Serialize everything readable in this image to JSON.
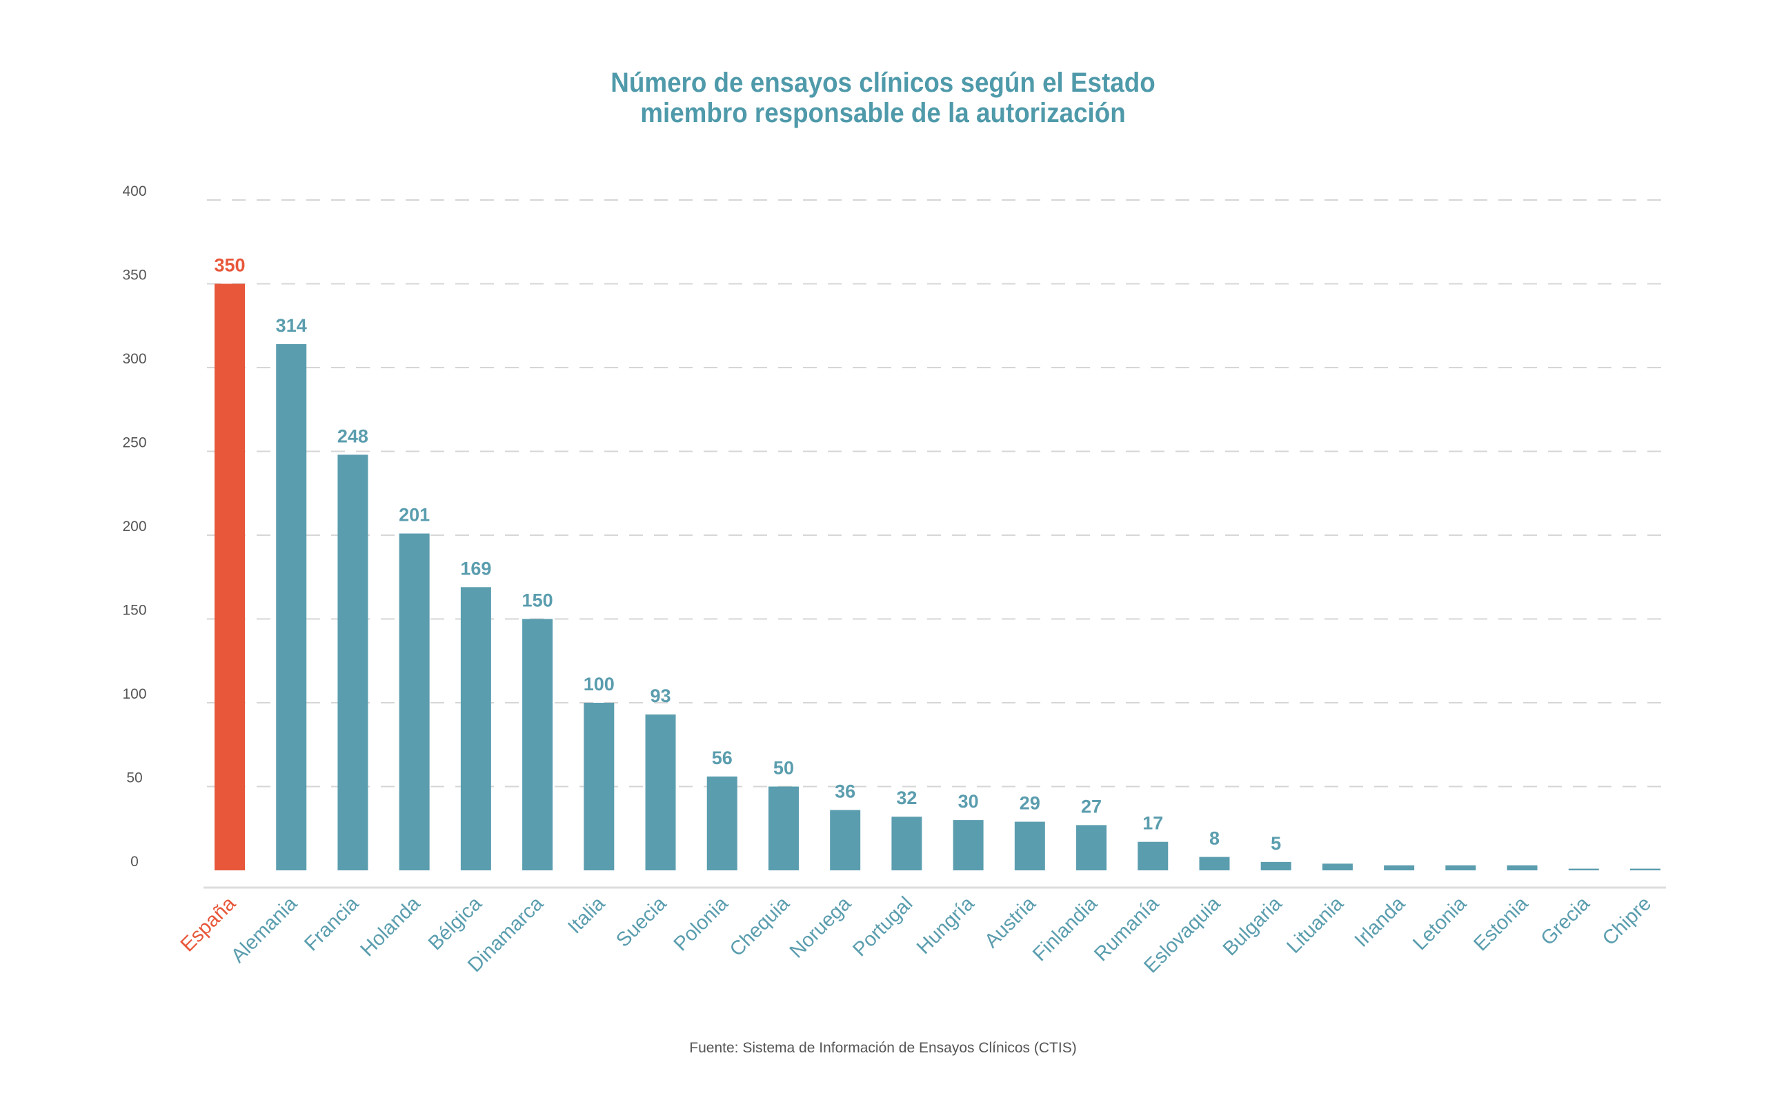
{
  "colors": {
    "highlight": "#e8573a",
    "bar": "#5a9dae",
    "title": "#4f9aaa",
    "grid": "#d6d6d6",
    "axis_text": "#555555"
  },
  "chart_data": {
    "type": "bar",
    "title_lines": [
      "Número de ensayos clínicos según el Estado",
      "miembro responsable de la autorización"
    ],
    "categories": [
      "España",
      "Alemania",
      "Francia",
      "Holanda",
      "Bélgica",
      "Dinamarca",
      "Italia",
      "Suecia",
      "Polonia",
      "Chequia",
      "Noruega",
      "Portugal",
      "Hungría",
      "Austria",
      "Finlandia",
      "Rumanía",
      "Eslovaquia",
      "Bulgaria",
      "Lituania",
      "Irlanda",
      "Letonia",
      "Estonia",
      "Grecia",
      "Chipre"
    ],
    "values": [
      350,
      314,
      248,
      201,
      169,
      150,
      100,
      93,
      56,
      50,
      36,
      32,
      30,
      29,
      27,
      17,
      8,
      5,
      4,
      3,
      3,
      3,
      1,
      1
    ],
    "data_labels": [
      "350",
      "314",
      "248",
      "201",
      "169",
      "150",
      "100",
      "93",
      "56",
      "50",
      "36",
      "32",
      "30",
      "29",
      "27",
      "17",
      "8",
      "5",
      "",
      "",
      "",
      "",
      "",
      ""
    ],
    "highlight_index": 0,
    "y_ticks": [
      "0",
      "50",
      "100",
      "150",
      "200",
      "250",
      "300",
      "350",
      "400"
    ],
    "ylim": [
      0,
      400
    ],
    "grid": true,
    "source": "Fuente: Sistema de Información de Ensayos Clínicos (CTIS)"
  }
}
